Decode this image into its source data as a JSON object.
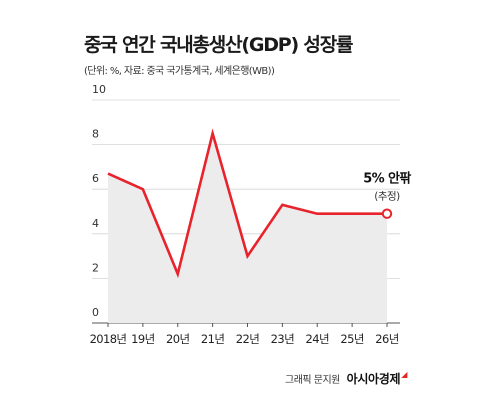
{
  "chart_data": {
    "type": "line",
    "title": "중국 연간 국내총생산(GDP) 성장률",
    "subtitle": "(단위: %, 자료: 중국 국가통계국, 세계은행(WB))",
    "categories": [
      "2018년",
      "19년",
      "20년",
      "21년",
      "22년",
      "23년",
      "24년",
      "25년",
      "26년"
    ],
    "values": [
      6.7,
      6.0,
      2.2,
      8.5,
      3.0,
      5.3,
      4.9,
      4.9,
      4.9
    ],
    "yticks": [
      "0",
      "2",
      "4",
      "6",
      "8",
      "10"
    ],
    "ylim": [
      0,
      10
    ],
    "grid": true,
    "line_color": "#e8232b",
    "area_color": "#ececec",
    "annotation": {
      "label": "5% 안팎",
      "sub": "(추정)",
      "index": 8
    }
  },
  "credit": {
    "text": "그래픽 문지원",
    "brand": "아시아경제"
  }
}
